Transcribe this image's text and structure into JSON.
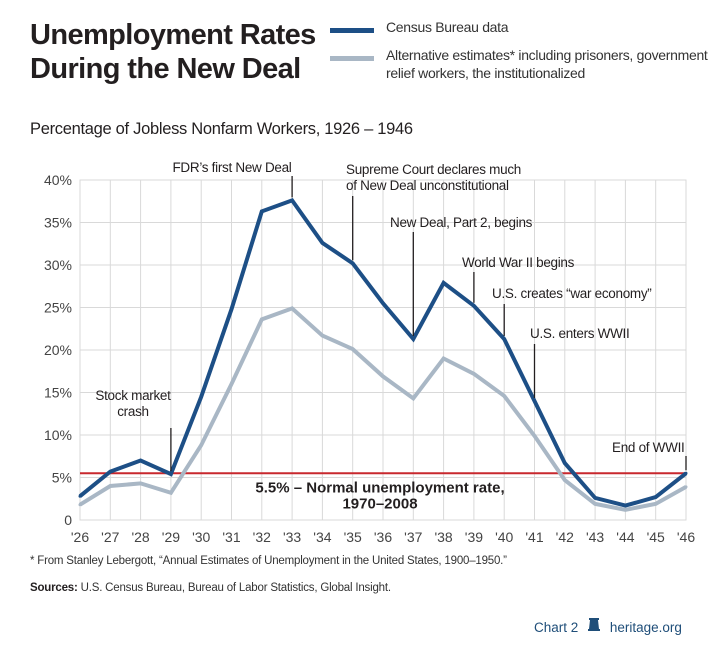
{
  "header": {
    "title_line1": "Unemployment Rates",
    "title_line2": "During the New Deal",
    "subtitle": "Percentage of Jobless Nonfarm Workers, 1926 – 1946"
  },
  "colors": {
    "census": "#1d4f86",
    "alternative": "#a9b7c5",
    "normal_line": "#c8282e",
    "grid": "#d9d9d9",
    "axis_text": "#444444"
  },
  "footer": {
    "footnote": "* From Stanley Lebergott, “Annual Estimates of Unemployment in the United States, 1900–1950.”",
    "sources_label": "Sources:",
    "sources_text": "U.S. Census Bureau, Bureau of Labor Statistics, Global Insight.",
    "chart_label": "Chart 2",
    "brand_icon": "liberty-bell-icon",
    "brand_site": "heritage.org"
  },
  "chart_data": {
    "type": "line",
    "title": "Unemployment Rates During the New Deal",
    "subtitle": "Percentage of Jobless Nonfarm Workers, 1926 – 1946",
    "xlabel": "",
    "ylabel": "",
    "x": [
      "'26",
      "'27",
      "'28",
      "'29",
      "'30",
      "'31",
      "'32",
      "'33",
      "'34",
      "'35",
      "'36",
      "'37",
      "'38",
      "'39",
      "'40",
      "'41",
      "'42",
      "'43",
      "'44",
      "'45",
      "'46"
    ],
    "y_ticks": [
      "0",
      "5%",
      "10%",
      "15%",
      "20%",
      "25%",
      "30%",
      "35%",
      "40%"
    ],
    "ylim": [
      0,
      40
    ],
    "grid": true,
    "series": [
      {
        "name": "Census Bureau data",
        "values": [
          2.8,
          5.7,
          7.0,
          5.4,
          14.5,
          24.8,
          36.3,
          37.6,
          32.6,
          30.2,
          25.5,
          21.3,
          27.9,
          25.2,
          21.3,
          14.0,
          6.7,
          2.6,
          1.7,
          2.7,
          5.5
        ]
      },
      {
        "name": "Alternative estimates* including prisoners, government relief workers, the institutionalized",
        "values": [
          1.8,
          4.0,
          4.3,
          3.2,
          8.8,
          16.0,
          23.6,
          24.9,
          21.7,
          20.1,
          16.9,
          14.3,
          19.0,
          17.2,
          14.6,
          9.9,
          4.7,
          1.9,
          1.2,
          1.9,
          3.9
        ]
      }
    ],
    "reference_line": {
      "value": 5.5,
      "label_line1": "5.5% – Normal unemployment rate,",
      "label_line2": "1970–2008"
    },
    "legend": {
      "position": "top-right",
      "entries": [
        "Census Bureau data",
        "Alternative estimates* including prisoners, government relief workers, the institutionalized"
      ]
    },
    "annotations": [
      {
        "id": "crash",
        "year_index": 3,
        "value": 5.4,
        "lines": [
          "Stock market",
          "crash"
        ]
      },
      {
        "id": "new-deal-1",
        "year_index": 7,
        "value": 37.6,
        "lines": [
          "FDR’s first New Deal"
        ]
      },
      {
        "id": "supreme-court",
        "year_index": 9,
        "value": 30.2,
        "lines": [
          "Supreme Court declares much",
          "of New Deal unconstitutional"
        ]
      },
      {
        "id": "new-deal-2",
        "year_index": 11,
        "value": 21.3,
        "lines": [
          "New Deal, Part 2, begins"
        ]
      },
      {
        "id": "wwii-begins",
        "year_index": 13,
        "value": 25.2,
        "lines": [
          "World War II begins"
        ]
      },
      {
        "id": "war-economy",
        "year_index": 14,
        "value": 21.3,
        "lines": [
          "U.S. creates “war economy”"
        ]
      },
      {
        "id": "us-enters",
        "year_index": 15,
        "value": 14.0,
        "lines": [
          "U.S. enters WWII"
        ]
      },
      {
        "id": "end-wwii",
        "year_index": 20,
        "value": 5.5,
        "lines": [
          "End of WWII"
        ]
      }
    ]
  }
}
